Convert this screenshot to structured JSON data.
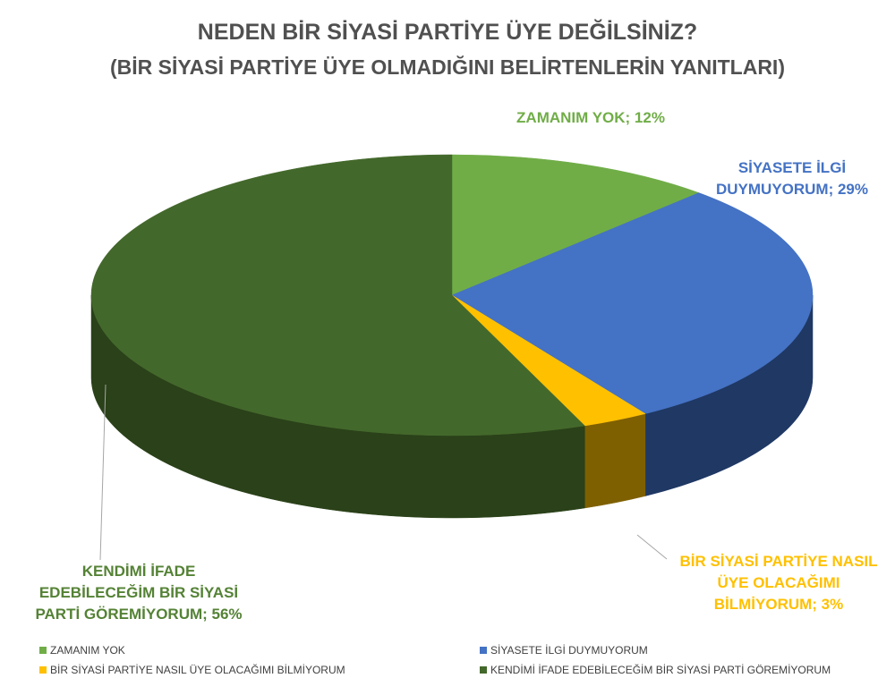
{
  "chart_data": {
    "type": "pie",
    "title": "NEDEN BİR SİYASİ PARTİYE ÜYE DEĞİLSİNİZ?",
    "subtitle": "(BİR SİYASİ PARTİYE ÜYE OLMADIĞINI BELİRTENLERİN YANITLARI)",
    "slices": [
      {
        "name": "ZAMANIM YOK",
        "value": 12,
        "data_label": "ZAMANIM YOK; 12%",
        "color": "#70AD47",
        "side_color": "#466F2A"
      },
      {
        "name": "SİYASETE İLGİ DUYMUYORUM",
        "value": 29,
        "data_label": "SİYASETE İLGİ DUYMUYORUM; 29%",
        "color": "#4472C4",
        "side_color": "#1F3864"
      },
      {
        "name": "BİR SİYASİ PARTİYE NASIL ÜYE OLACAĞIMI BİLMİYORUM",
        "value": 3,
        "data_label": "BİR SİYASİ PARTİYE NASIL ÜYE OLACAĞIMI BİLMİYORUM; 3%",
        "color": "#FFC000",
        "side_color": "#7F6000"
      },
      {
        "name": "KENDİMİ İFADE EDEBİLECEĞİM BİR SİYASİ PARTİ GÖREMİYORUM",
        "value": 56,
        "data_label": "KENDİMİ İFADE EDEBİLECEĞİM BİR SİYASİ PARTİ GÖREMİYORUM; 56%",
        "color": "#43682B",
        "side_color": "#2A4119"
      }
    ],
    "label_colors": [
      "#70AD47",
      "#4472C4",
      "#FFC000",
      "#548235"
    ],
    "legend_position": "bottom",
    "three_d": true
  }
}
